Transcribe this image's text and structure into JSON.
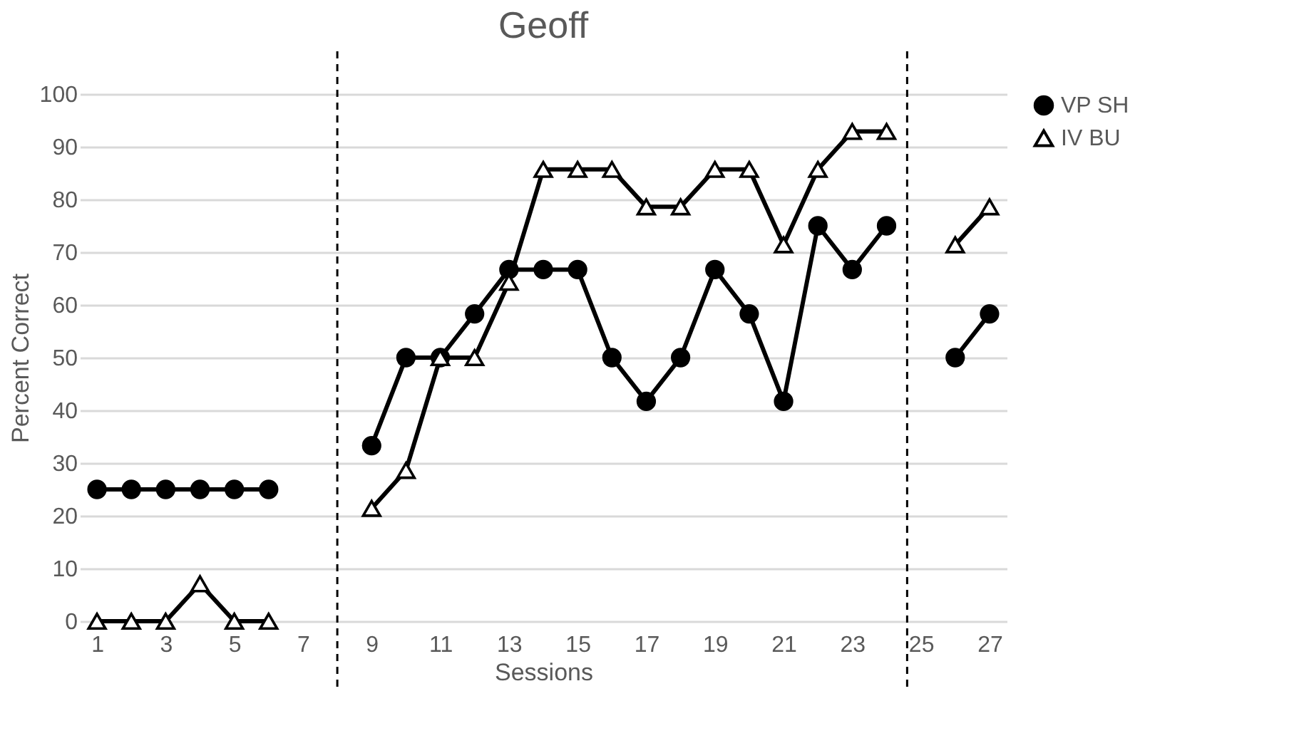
{
  "chart_data": {
    "type": "line",
    "title": "Geoff",
    "xlabel": "Sessions",
    "ylabel": "Percent Correct",
    "x": [
      1,
      2,
      3,
      4,
      5,
      6,
      7,
      8,
      9,
      10,
      11,
      12,
      13,
      14,
      15,
      16,
      17,
      18,
      19,
      20,
      21,
      22,
      23,
      24,
      25,
      26,
      27
    ],
    "series": [
      {
        "name": "VP SH",
        "color": "#000000",
        "marker": "circle",
        "values": [
          25,
          25,
          25,
          25,
          25,
          25,
          null,
          null,
          33.3,
          50,
          50,
          58.3,
          66.7,
          66.7,
          66.7,
          50,
          41.7,
          50,
          66.7,
          58.3,
          41.7,
          75,
          66.7,
          75,
          null,
          50,
          58.3
        ]
      },
      {
        "name": "IV BU",
        "color": "#000000",
        "marker": "triangle",
        "values": [
          0,
          0,
          0,
          7.1,
          0,
          0,
          null,
          null,
          21.4,
          28.6,
          50,
          50,
          64.3,
          85.7,
          85.7,
          85.7,
          78.6,
          78.6,
          85.7,
          85.7,
          71.4,
          85.7,
          92.9,
          92.9,
          null,
          71.4,
          78.6
        ]
      }
    ],
    "xlim": [
      0.5,
      27.5
    ],
    "xticks": [
      1,
      3,
      5,
      7,
      9,
      11,
      13,
      15,
      17,
      19,
      21,
      23,
      25,
      27
    ],
    "ylim": [
      0,
      100
    ],
    "yticks": [
      0,
      10,
      20,
      30,
      40,
      50,
      60,
      70,
      80,
      90,
      100
    ],
    "ref_lines": [
      {
        "axis": "x",
        "value": 8,
        "color": "#000000",
        "line_style": "dashed"
      },
      {
        "axis": "x",
        "value": 24.6,
        "color": "#000000",
        "line_style": "dashed"
      }
    ],
    "grid": "y",
    "legend": "right",
    "line_style": "solid"
  }
}
